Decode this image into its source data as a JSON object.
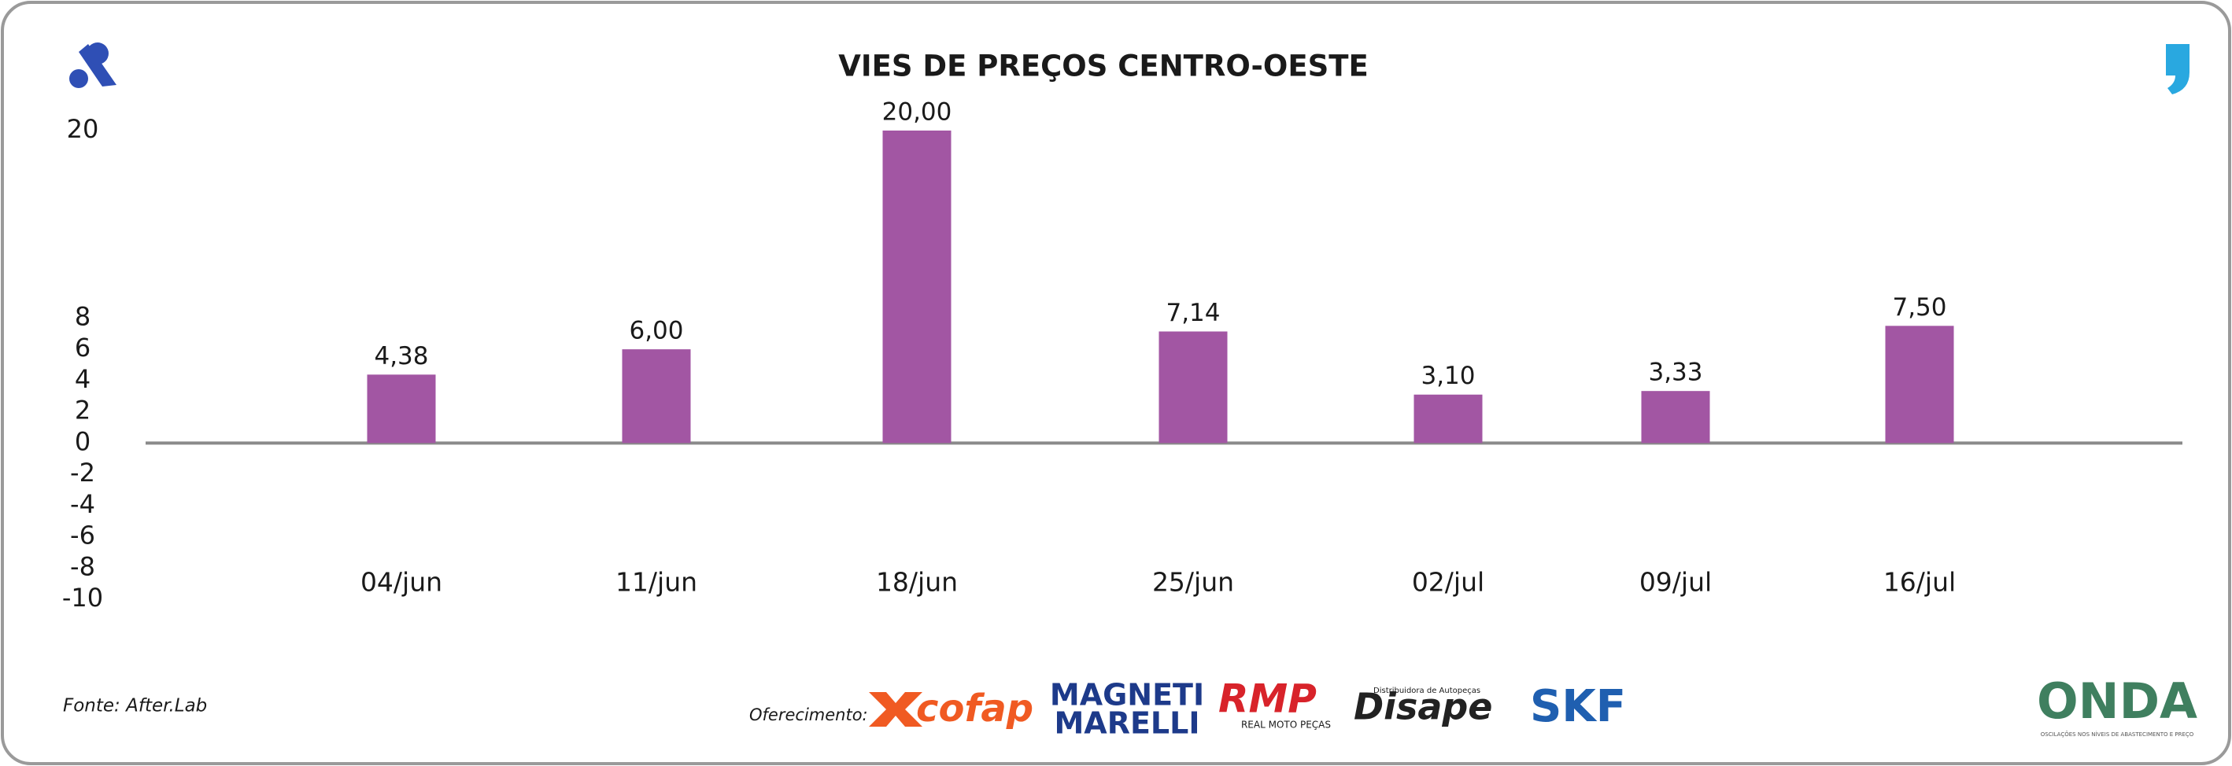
{
  "chart_data": {
    "type": "bar",
    "title": "VIES DE PREÇOS CENTRO-OESTE",
    "categories": [
      "04/jun",
      "11/jun",
      "18/jun",
      "25/jun",
      "02/jul",
      "09/jul",
      "16/jul"
    ],
    "values": [
      4.38,
      6.0,
      20.0,
      7.14,
      3.1,
      3.33,
      7.5
    ],
    "value_labels": [
      "4,38",
      "6,00",
      "20,00",
      "7,14",
      "3,10",
      "3,33",
      "7,50"
    ],
    "color": "#a256a3",
    "ylim": [
      -10,
      20
    ],
    "yticks": [
      20,
      8,
      6,
      4,
      2,
      0,
      -2,
      -4,
      -6,
      -8,
      -10
    ]
  },
  "footer": {
    "source": "Fonte: After.Lab",
    "sponsor_label": "Oferecimento:",
    "sponsors": [
      "cofap",
      "MAGNETI",
      "MARELLI",
      "RMP",
      "REAL MOTO PEÇAS",
      "Disape",
      "Distribuidora de Autopeças",
      "SKF",
      "ONDA",
      "OSCILAÇÕES NOS NÍVEIS DE ABASTECIMENTO E PREÇO"
    ]
  }
}
